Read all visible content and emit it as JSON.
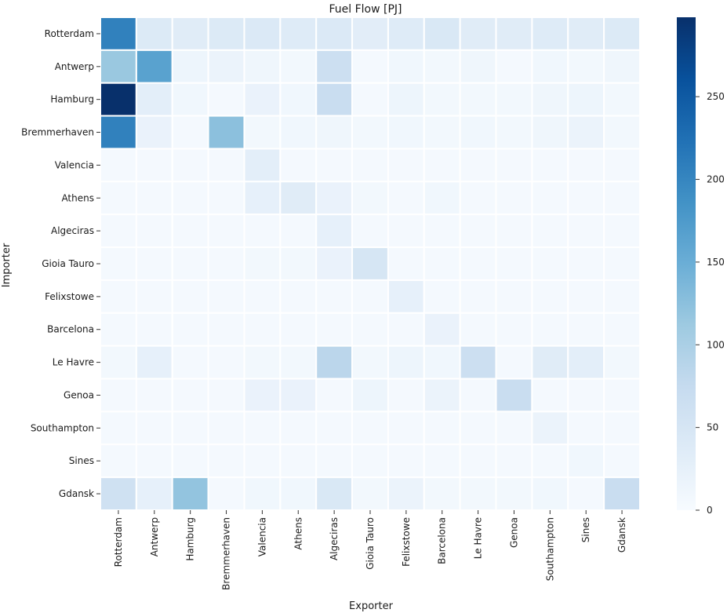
{
  "chart_data": {
    "type": "heatmap",
    "title": "Fuel Flow [PJ]",
    "xlabel": "Exporter",
    "ylabel": "Importer",
    "x_categories": [
      "Rotterdam",
      "Antwerp",
      "Hamburg",
      "Bremmerhaven",
      "Valencia",
      "Athens",
      "Algeciras",
      "Gioia Tauro",
      "Felixstowe",
      "Barcelona",
      "Le Havre",
      "Genoa",
      "Southampton",
      "Sines",
      "Gdansk"
    ],
    "y_categories": [
      "Rotterdam",
      "Antwerp",
      "Hamburg",
      "Bremmerhaven",
      "Valencia",
      "Athens",
      "Algeciras",
      "Gioia Tauro",
      "Felixstowe",
      "Barcelona",
      "Le Havre",
      "Genoa",
      "Southampton",
      "Sines",
      "Gdansk"
    ],
    "values": [
      [
        205,
        40,
        35,
        40,
        42,
        38,
        42,
        32,
        38,
        45,
        35,
        35,
        38,
        35,
        40
      ],
      [
        115,
        165,
        15,
        18,
        12,
        8,
        65,
        5,
        10,
        8,
        12,
        5,
        10,
        8,
        12
      ],
      [
        298,
        30,
        10,
        5,
        20,
        10,
        70,
        5,
        15,
        8,
        8,
        8,
        12,
        15,
        8
      ],
      [
        205,
        20,
        5,
        125,
        8,
        10,
        12,
        8,
        10,
        8,
        10,
        8,
        12,
        18,
        8
      ],
      [
        5,
        5,
        5,
        5,
        30,
        5,
        5,
        5,
        5,
        5,
        5,
        5,
        5,
        5,
        5
      ],
      [
        5,
        5,
        5,
        5,
        25,
        35,
        20,
        8,
        5,
        10,
        5,
        5,
        5,
        5,
        5
      ],
      [
        5,
        5,
        5,
        5,
        5,
        5,
        25,
        5,
        5,
        5,
        5,
        5,
        5,
        5,
        5
      ],
      [
        5,
        5,
        5,
        5,
        8,
        8,
        20,
        50,
        5,
        5,
        5,
        5,
        5,
        5,
        5
      ],
      [
        5,
        5,
        5,
        5,
        5,
        5,
        5,
        5,
        25,
        5,
        5,
        5,
        5,
        5,
        5
      ],
      [
        5,
        5,
        5,
        5,
        5,
        5,
        5,
        5,
        5,
        20,
        5,
        5,
        5,
        5,
        5
      ],
      [
        8,
        25,
        5,
        5,
        8,
        8,
        85,
        8,
        15,
        10,
        65,
        5,
        35,
        30,
        8
      ],
      [
        5,
        5,
        5,
        5,
        20,
        20,
        5,
        15,
        5,
        18,
        5,
        70,
        5,
        5,
        5
      ],
      [
        5,
        5,
        5,
        5,
        5,
        5,
        5,
        5,
        5,
        5,
        5,
        5,
        18,
        5,
        5
      ],
      [
        5,
        5,
        5,
        5,
        5,
        5,
        5,
        5,
        5,
        5,
        5,
        5,
        5,
        10,
        5
      ],
      [
        60,
        25,
        120,
        5,
        10,
        10,
        45,
        8,
        18,
        8,
        8,
        8,
        10,
        5,
        70
      ]
    ],
    "colorbar": {
      "min": 0,
      "max": 298,
      "ticks": [
        0,
        50,
        100,
        150,
        200,
        250
      ]
    },
    "colormap": [
      "#f7fbff",
      "#deebf7",
      "#c6dbef",
      "#9ecae1",
      "#6baed6",
      "#4292c6",
      "#2171b5",
      "#08519c",
      "#08306b"
    ],
    "grid_color": "#ffffff"
  }
}
